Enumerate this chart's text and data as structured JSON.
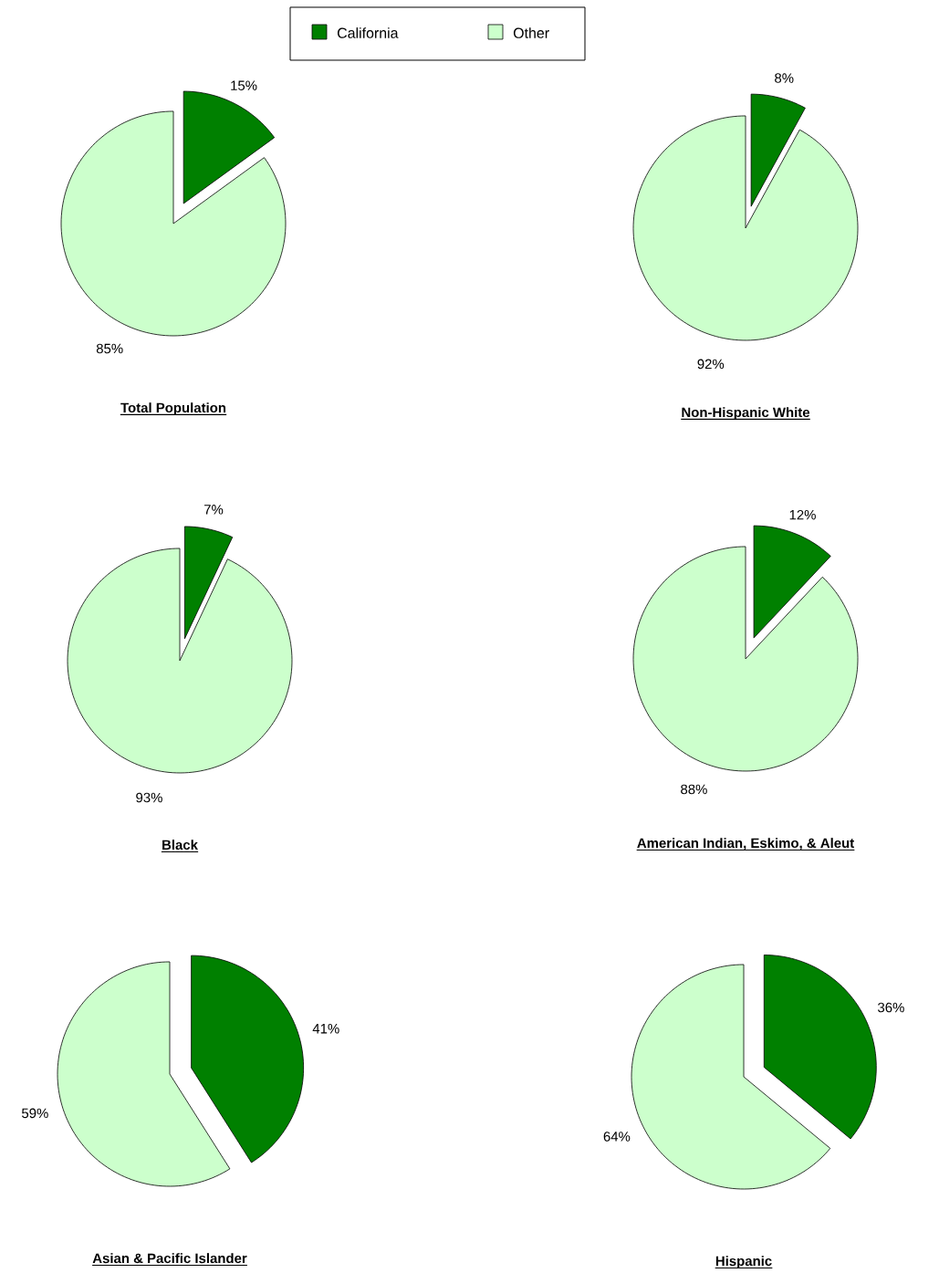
{
  "chart_data": [
    {
      "type": "pie",
      "title": "Total Population",
      "categories": [
        "California",
        "Other"
      ],
      "values": [
        15,
        85
      ],
      "value_labels": [
        "15%",
        "85%"
      ],
      "colors": [
        "#008000",
        "#ccffcc"
      ],
      "legend": "top"
    },
    {
      "type": "pie",
      "title": "Non-Hispanic White",
      "categories": [
        null,
        null
      ],
      "values": [
        8,
        92
      ],
      "value_labels": [
        "8%",
        "92%"
      ],
      "colors": [
        "#008000",
        "#ccffcc"
      ]
    },
    {
      "type": "pie",
      "title": "Black",
      "categories": [
        null,
        null
      ],
      "values": [
        7,
        93
      ],
      "value_labels": [
        "7%",
        "93%"
      ],
      "colors": [
        "#008000",
        "#ccffcc"
      ]
    },
    {
      "type": "pie",
      "title": "American Indian, Eskimo, & Aleut",
      "categories": [
        null,
        null
      ],
      "values": [
        12,
        88
      ],
      "value_labels": [
        "12%",
        "88%"
      ],
      "colors": [
        "#008000",
        "#ccffcc"
      ]
    },
    {
      "type": "pie",
      "title": "Asian & Pacific Islander",
      "categories": [
        null,
        null
      ],
      "values": [
        41,
        59
      ],
      "value_labels": [
        "41%",
        "59%"
      ],
      "colors": [
        "#008000",
        "#ccffcc"
      ]
    },
    {
      "type": "pie",
      "title": "Hispanic",
      "categories": [
        null,
        null
      ],
      "values": [
        36,
        64
      ],
      "value_labels": [
        "36%",
        "64%"
      ],
      "colors": [
        "#008000",
        "#ccffcc"
      ]
    }
  ]
}
